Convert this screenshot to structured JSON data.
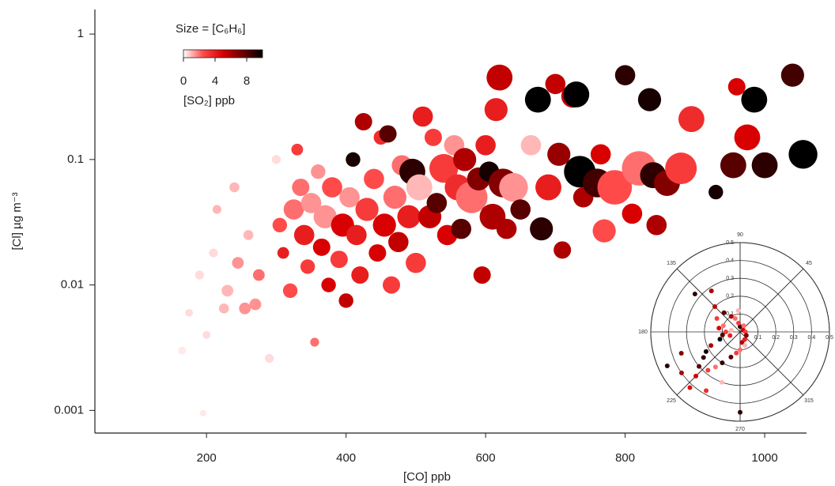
{
  "chart_data": [
    {
      "type": "scatter",
      "x_label": "[CO] ppb",
      "y_label": "[Cl] µg m⁻³",
      "size_label": "Size = [C₆H₆]",
      "color_label": "[SO₂] ppb",
      "xlim": [
        40,
        1060
      ],
      "ylim": [
        0.00066,
        1.57
      ],
      "xticks": [
        200,
        400,
        600,
        800,
        1000
      ],
      "yticks": [
        0.001,
        0.01,
        0.1,
        1
      ],
      "log_y": true,
      "clim": [
        0,
        10
      ],
      "cticks": [
        0,
        4,
        8
      ],
      "colormap": [
        "#ffffff",
        "#ff4a4a",
        "#d80000",
        "#6e0000",
        "#000000"
      ],
      "x": [
        95,
        150,
        165,
        175,
        190,
        195,
        200,
        210,
        215,
        225,
        230,
        240,
        245,
        255,
        260,
        270,
        275,
        290,
        300,
        305,
        310,
        320,
        325,
        330,
        335,
        340,
        345,
        350,
        355,
        360,
        365,
        370,
        375,
        380,
        390,
        395,
        400,
        405,
        410,
        415,
        420,
        425,
        430,
        440,
        445,
        450,
        455,
        460,
        465,
        470,
        475,
        480,
        490,
        495,
        500,
        505,
        510,
        520,
        525,
        530,
        540,
        545,
        555,
        560,
        565,
        570,
        580,
        590,
        595,
        600,
        605,
        610,
        615,
        620,
        625,
        630,
        640,
        650,
        665,
        675,
        680,
        690,
        700,
        705,
        710,
        725,
        730,
        735,
        740,
        760,
        765,
        770,
        785,
        800,
        810,
        820,
        835,
        840,
        845,
        860,
        880,
        895,
        930,
        955,
        960,
        975,
        985,
        1000,
        1040,
        1055
      ],
      "values": [
        0.0013,
        0.0015,
        0.003,
        0.006,
        0.012,
        0.00095,
        0.004,
        0.018,
        0.04,
        0.0065,
        0.009,
        0.06,
        0.015,
        0.0065,
        0.025,
        0.007,
        0.012,
        0.0026,
        0.1,
        0.03,
        0.018,
        0.009,
        0.04,
        0.12,
        0.06,
        0.025,
        0.014,
        0.045,
        0.0035,
        0.08,
        0.02,
        0.035,
        0.01,
        0.06,
        0.016,
        0.03,
        0.0075,
        0.05,
        0.1,
        0.025,
        0.012,
        0.2,
        0.04,
        0.07,
        0.018,
        0.15,
        0.03,
        0.16,
        0.01,
        0.05,
        0.022,
        0.09,
        0.035,
        0.08,
        0.015,
        0.06,
        0.22,
        0.035,
        0.15,
        0.045,
        0.085,
        0.025,
        0.13,
        0.06,
        0.028,
        0.1,
        0.05,
        0.07,
        0.012,
        0.13,
        0.08,
        0.035,
        0.25,
        0.45,
        0.065,
        0.028,
        0.06,
        0.04,
        0.13,
        0.3,
        0.028,
        0.06,
        0.4,
        0.11,
        0.019,
        0.32,
        0.33,
        0.08,
        0.05,
        0.065,
        0.11,
        0.027,
        0.06,
        0.47,
        0.037,
        0.085,
        0.3,
        0.075,
        0.03,
        0.065,
        0.085,
        0.21,
        0.055,
        0.09,
        0.38,
        0.15,
        0.3,
        0.09,
        0.47,
        0.11
      ],
      "size": [
        0.6,
        0.6,
        0.8,
        0.8,
        1,
        0.6,
        0.8,
        1,
        1,
        1.2,
        1.5,
        1.2,
        1.5,
        1.5,
        1.2,
        1.5,
        1.5,
        1,
        1,
        2,
        1.5,
        2,
        3,
        1.5,
        2.5,
        3,
        2,
        3,
        1,
        2,
        2.5,
        3.5,
        2,
        3,
        2.5,
        3.5,
        2,
        3,
        2,
        3,
        2.5,
        2.5,
        3.5,
        3,
        2.5,
        2,
        3.5,
        2.5,
        2.5,
        3.5,
        3,
        3,
        3.5,
        4,
        3,
        4,
        3,
        3.5,
        2.5,
        3,
        4.5,
        3,
        3,
        4,
        3,
        3.5,
        5,
        3.5,
        2.5,
        3,
        3,
        4,
        3.5,
        4,
        4.5,
        3,
        4.5,
        3,
        3,
        4,
        3.5,
        4,
        3,
        3.5,
        2.5,
        3.5,
        4,
        5,
        3,
        4.5,
        3,
        3.5,
        5.5,
        3,
        3,
        5.5,
        3.5,
        4,
        3,
        4,
        5,
        4,
        2,
        4,
        2.5,
        4,
        4,
        4,
        3.5,
        4.5
      ],
      "so2": [
        0,
        0,
        0.3,
        0.5,
        0.5,
        0.3,
        0.5,
        0.5,
        1,
        1,
        1,
        1,
        1.5,
        1.5,
        1,
        1.5,
        2,
        0.5,
        0.5,
        2.5,
        4,
        2.5,
        2,
        3,
        2,
        4,
        3,
        1.5,
        2,
        1.5,
        5,
        1.5,
        5,
        2.5,
        3,
        5,
        5.5,
        1.5,
        9.5,
        4,
        4,
        6,
        3,
        2.5,
        5,
        3.5,
        5,
        8,
        3,
        2,
        5.5,
        2,
        4,
        9,
        3,
        1,
        4,
        5.5,
        3,
        8,
        3,
        5,
        1.5,
        3.5,
        8,
        6,
        2,
        7,
        5.5,
        4,
        9.5,
        6,
        4,
        5.5,
        7,
        6,
        1.5,
        8,
        1,
        10,
        9,
        4,
        5.5,
        6.5,
        6,
        5.5,
        10,
        10,
        6,
        8.5,
        5,
        2.5,
        2.5,
        9,
        5,
        2,
        9.5,
        9,
        6,
        7,
        3,
        3.5,
        9.5,
        8,
        5,
        5,
        10,
        9,
        8.5,
        10
      ]
    },
    {
      "type": "polar",
      "rlim": [
        0,
        0.5
      ],
      "rticks": [
        0.1,
        0.2,
        0.3,
        0.4,
        0.5
      ],
      "thetaticks": [
        90,
        45,
        135,
        180,
        225,
        270,
        315
      ],
      "theta": [
        90,
        100,
        110,
        95,
        120,
        130,
        135,
        140,
        125,
        150,
        160,
        170,
        180,
        190,
        200,
        205,
        210,
        215,
        220,
        225,
        230,
        235,
        240,
        200,
        205,
        215,
        228,
        250,
        260,
        270,
        280,
        290,
        300,
        270,
        240,
        250,
        30,
        60,
        0,
        330,
        170,
        200
      ],
      "r": [
        0.03,
        0.05,
        0.08,
        0.12,
        0.1,
        0.14,
        0.2,
        0.33,
        0.28,
        0.15,
        0.1,
        0.12,
        0.08,
        0.1,
        0.12,
        0.18,
        0.22,
        0.25,
        0.3,
        0.35,
        0.28,
        0.24,
        0.2,
        0.35,
        0.45,
        0.4,
        0.42,
        0.15,
        0.12,
        0.1,
        0.06,
        0.08,
        0.05,
        0.45,
        0.38,
        0.3,
        0.02,
        0.04,
        0.03,
        0.04,
        0.05,
        0.06
      ],
      "so2": [
        9,
        3,
        2,
        1,
        6,
        8,
        5.5,
        9,
        6,
        3,
        2,
        5,
        3,
        8,
        10,
        6,
        10,
        9,
        8,
        5,
        3,
        2,
        9,
        7,
        9,
        6,
        4.5,
        8,
        3,
        2,
        6,
        1,
        4,
        9,
        3.5,
        1,
        5,
        2,
        3,
        7,
        1,
        4
      ]
    }
  ]
}
